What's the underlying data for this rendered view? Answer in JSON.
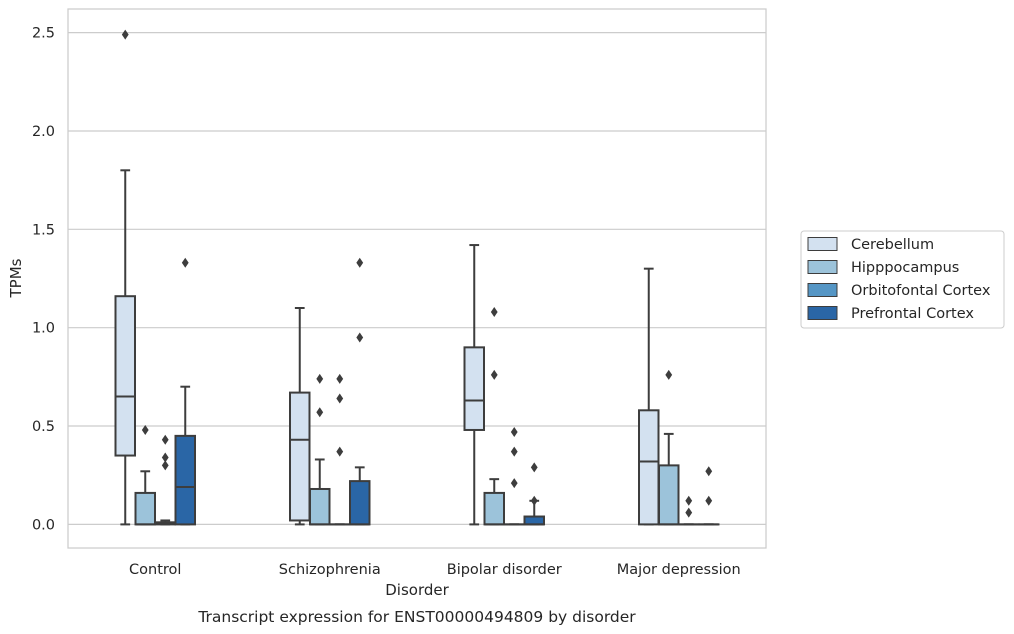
{
  "chart_data": {
    "type": "box",
    "title": "Transcript expression for ENST00000494809 by disorder",
    "xlabel": "Disorder",
    "ylabel": "TPMs",
    "ylim": [
      -0.12,
      2.62
    ],
    "yticks": [
      0.0,
      0.5,
      1.0,
      1.5,
      2.0,
      2.5
    ],
    "ytick_labels": [
      "0.0",
      "0.5",
      "1.0",
      "1.5",
      "2.0",
      "2.5"
    ],
    "grid": "horizontal",
    "legend_position": "right",
    "categories": [
      "Control",
      "Schizophrenia",
      "Bipolar disorder",
      "Major depression"
    ],
    "colors": [
      "#d3e1f0",
      "#9cc3da",
      "#5596c5",
      "#2a66a6"
    ],
    "series": [
      {
        "name": "Cerebellum",
        "boxes": [
          {
            "whislo": 0.0,
            "q1": 0.35,
            "med": 0.65,
            "q3": 1.16,
            "whishi": 1.8,
            "fliers": [
              2.49
            ]
          },
          {
            "whislo": 0.0,
            "q1": 0.02,
            "med": 0.43,
            "q3": 0.67,
            "whishi": 1.1,
            "fliers": []
          },
          {
            "whislo": 0.0,
            "q1": 0.48,
            "med": 0.63,
            "q3": 0.9,
            "whishi": 1.42,
            "fliers": []
          },
          {
            "whislo": 0.0,
            "q1": 0.0,
            "med": 0.32,
            "q3": 0.58,
            "whishi": 1.3,
            "fliers": []
          }
        ]
      },
      {
        "name": "Hipppocampus",
        "boxes": [
          {
            "whislo": 0.0,
            "q1": 0.0,
            "med": 0.0,
            "q3": 0.16,
            "whishi": 0.27,
            "fliers": [
              0.48
            ]
          },
          {
            "whislo": 0.0,
            "q1": 0.0,
            "med": 0.0,
            "q3": 0.18,
            "whishi": 0.33,
            "fliers": [
              0.57,
              0.74
            ]
          },
          {
            "whislo": 0.0,
            "q1": 0.0,
            "med": 0.0,
            "q3": 0.16,
            "whishi": 0.23,
            "fliers": [
              0.76,
              1.08
            ]
          },
          {
            "whislo": 0.0,
            "q1": 0.0,
            "med": 0.0,
            "q3": 0.3,
            "whishi": 0.46,
            "fliers": [
              0.76
            ]
          }
        ]
      },
      {
        "name": "Orbitofontal Cortex",
        "boxes": [
          {
            "whislo": 0.0,
            "q1": 0.0,
            "med": 0.01,
            "q3": 0.01,
            "whishi": 0.02,
            "fliers": [
              0.3,
              0.34,
              0.43
            ]
          },
          {
            "whislo": 0.0,
            "q1": 0.0,
            "med": 0.0,
            "q3": 0.0,
            "whishi": 0.0,
            "fliers": [
              0.37,
              0.64,
              0.74
            ]
          },
          {
            "whislo": 0.0,
            "q1": 0.0,
            "med": 0.0,
            "q3": 0.0,
            "whishi": 0.0,
            "fliers": [
              0.21,
              0.37,
              0.47
            ]
          },
          {
            "whislo": 0.0,
            "q1": 0.0,
            "med": 0.0,
            "q3": 0.0,
            "whishi": 0.0,
            "fliers": [
              0.06,
              0.12
            ]
          }
        ]
      },
      {
        "name": "Prefrontal Cortex",
        "boxes": [
          {
            "whislo": 0.0,
            "q1": 0.0,
            "med": 0.19,
            "q3": 0.45,
            "whishi": 0.7,
            "fliers": [
              1.33
            ]
          },
          {
            "whislo": 0.0,
            "q1": 0.0,
            "med": 0.0,
            "q3": 0.22,
            "whishi": 0.29,
            "fliers": [
              0.95,
              1.33
            ]
          },
          {
            "whislo": 0.0,
            "q1": 0.0,
            "med": 0.0,
            "q3": 0.04,
            "whishi": 0.12,
            "fliers": [
              0.12,
              0.29
            ]
          },
          {
            "whislo": 0.0,
            "q1": 0.0,
            "med": 0.0,
            "q3": 0.0,
            "whishi": 0.0,
            "fliers": [
              0.12,
              0.27
            ]
          }
        ]
      }
    ]
  }
}
